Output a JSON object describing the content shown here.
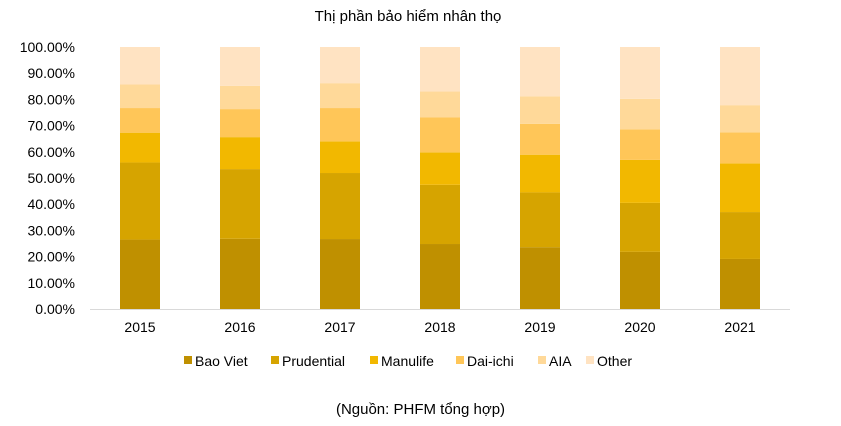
{
  "chart_data": {
    "type": "bar",
    "stacked": true,
    "title": "Thị phần bảo hiểm nhân thọ",
    "categories": [
      "2015",
      "2016",
      "2017",
      "2018",
      "2019",
      "2020",
      "2021"
    ],
    "y_ticks": [
      "0.00%",
      "10.00%",
      "20.00%",
      "30.00%",
      "40.00%",
      "50.00%",
      "60.00%",
      "70.00%",
      "80.00%",
      "90.00%",
      "100.00%"
    ],
    "ylim": [
      0,
      100
    ],
    "grid": false,
    "legend_position": "bottom",
    "series": [
      {
        "name": "Bao Viet",
        "color": "#BF9000",
        "values": [
          26.5,
          26.8,
          26.7,
          24.8,
          23.6,
          21.8,
          19.1
        ]
      },
      {
        "name": "Prudential",
        "color": "#D6A400",
        "values": [
          29.4,
          26.6,
          25.2,
          22.6,
          20.9,
          18.7,
          17.9
        ]
      },
      {
        "name": "Manulife",
        "color": "#F2B800",
        "values": [
          11.4,
          12.2,
          12.1,
          12.4,
          14.4,
          16.4,
          18.6
        ]
      },
      {
        "name": "Dai-ichi",
        "color": "#FFC658",
        "values": [
          9.4,
          10.7,
          12.7,
          13.3,
          11.8,
          11.6,
          11.8
        ]
      },
      {
        "name": "AIA",
        "color": "#FFD999",
        "values": [
          9.0,
          8.9,
          9.5,
          9.9,
          10.5,
          11.7,
          10.4
        ]
      },
      {
        "name": "Other",
        "color": "#FFE3C2",
        "values": [
          14.3,
          14.8,
          13.8,
          17.0,
          18.8,
          19.8,
          22.2
        ]
      }
    ]
  },
  "source_note": "(Nguồn: PHFM tổng hợp)"
}
